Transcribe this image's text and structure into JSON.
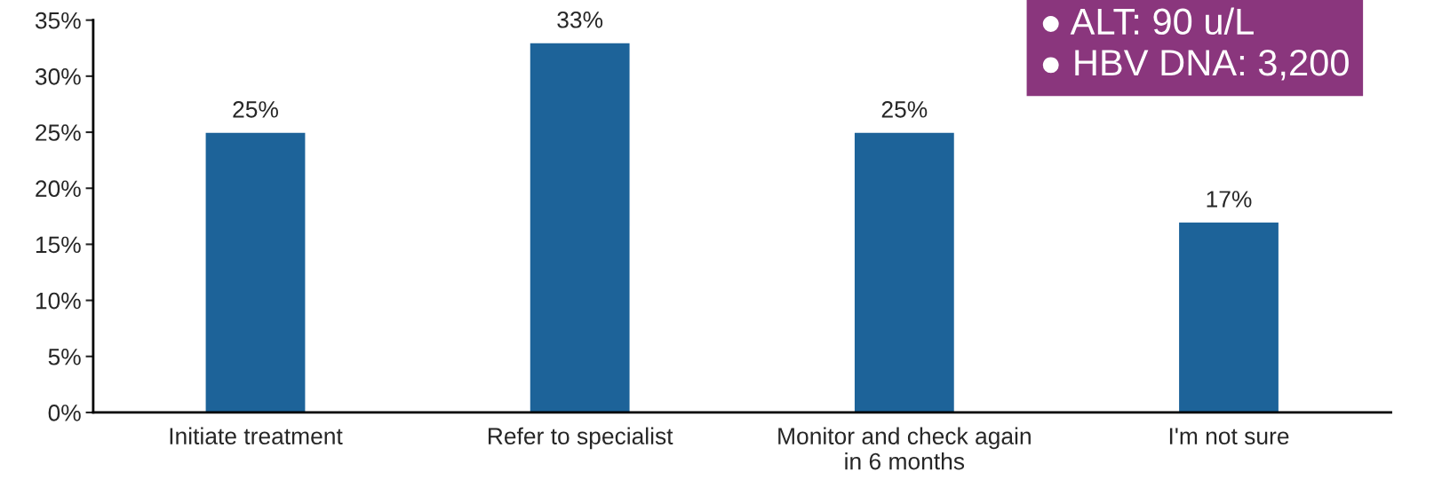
{
  "chart_data": {
    "type": "bar",
    "categories": [
      "Initiate treatment",
      "Refer to specialist",
      "Monitor and check again\nin 6 months",
      "I'm not sure"
    ],
    "values": [
      25,
      33,
      25,
      17
    ],
    "value_labels": [
      "25%",
      "33%",
      "25%",
      "17%"
    ],
    "color": "#1d6399",
    "ylim": [
      0,
      35
    ],
    "yticks": [
      {
        "value": 0,
        "label": "0%"
      },
      {
        "value": 5,
        "label": "5%"
      },
      {
        "value": 10,
        "label": "10%"
      },
      {
        "value": 15,
        "label": "15%"
      },
      {
        "value": 20,
        "label": "20%"
      },
      {
        "value": 25,
        "label": "25%"
      },
      {
        "value": 30,
        "label": "30%"
      },
      {
        "value": 35,
        "label": "35%"
      }
    ],
    "grid": false,
    "annotations": [
      "● ALT: 90 u/L",
      "● HBV DNA: 3,200"
    ]
  }
}
